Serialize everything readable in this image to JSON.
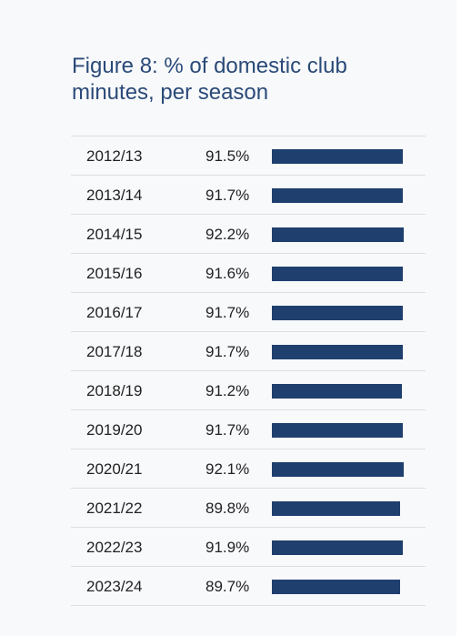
{
  "title": "Figure 8: % of domestic club minutes, per season",
  "colors": {
    "bar": "#1f3f6e",
    "title": "#2a4a78",
    "text": "#222222",
    "divider": "#dcdee3",
    "background": "#f8f9fb"
  },
  "chart_data": {
    "type": "bar",
    "title": "Figure 8: % of domestic club minutes, per season",
    "categories": [
      "2012/13",
      "2013/14",
      "2014/15",
      "2015/16",
      "2016/17",
      "2017/18",
      "2018/19",
      "2019/20",
      "2020/21",
      "2021/22",
      "2022/23",
      "2023/24"
    ],
    "values": [
      91.5,
      91.7,
      92.2,
      91.6,
      91.7,
      91.7,
      91.2,
      91.7,
      92.1,
      89.8,
      91.9,
      89.7
    ],
    "value_labels": [
      "91.5%",
      "91.7%",
      "92.2%",
      "91.6%",
      "91.7%",
      "91.7%",
      "91.2%",
      "91.7%",
      "92.1%",
      "89.8%",
      "91.9%",
      "89.7%"
    ],
    "orientation": "horizontal",
    "xlim": [
      0,
      100
    ],
    "grid": false,
    "legend": "none"
  }
}
